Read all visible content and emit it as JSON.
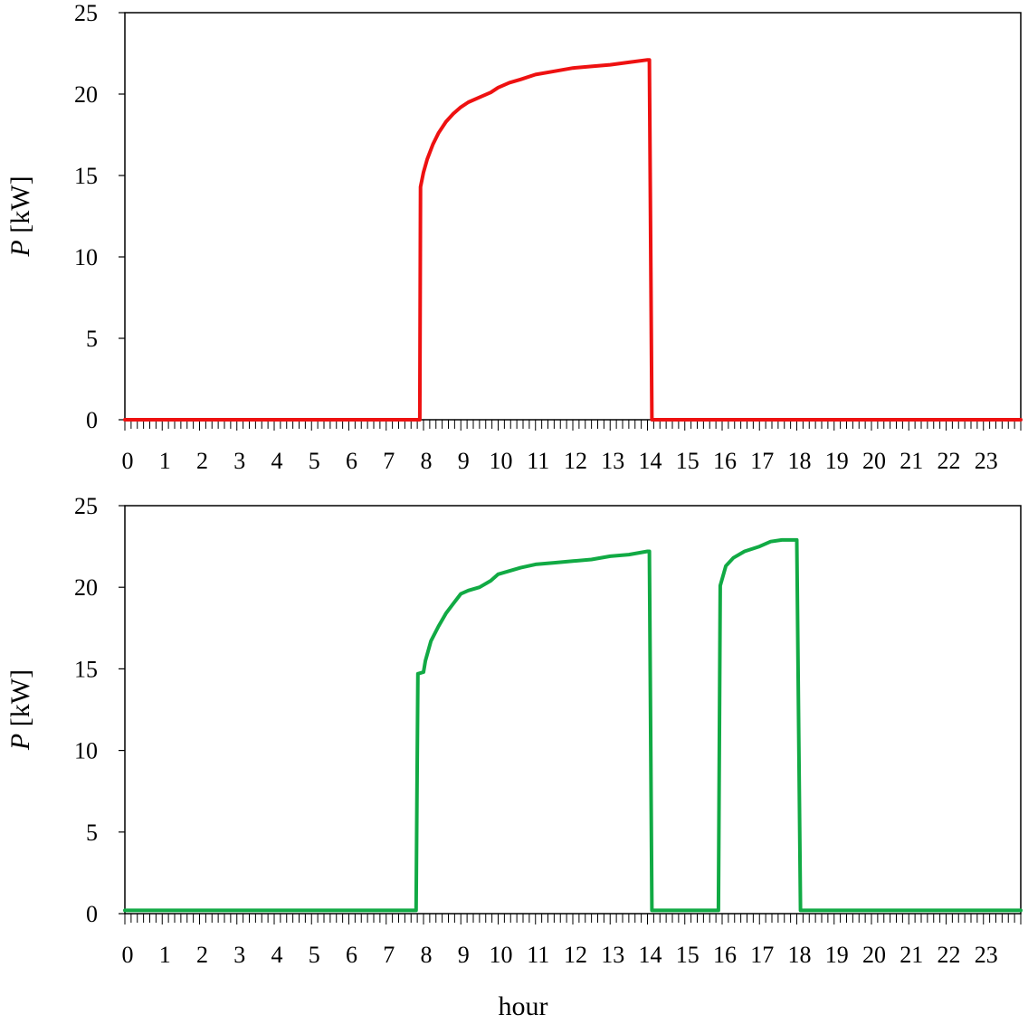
{
  "chart_data": [
    {
      "type": "line",
      "xlabel": "",
      "ylabel_italic": "P",
      "ylabel_rest": " [kW]",
      "ylim": [
        0,
        25
      ],
      "yticks": [
        "0",
        "5",
        "10",
        "15",
        "20",
        "25"
      ],
      "xlim": [
        0,
        24
      ],
      "xticks": [
        "0",
        "1",
        "2",
        "3",
        "4",
        "5",
        "6",
        "7",
        "8",
        "9",
        "10",
        "11",
        "12",
        "13",
        "14",
        "15",
        "16",
        "17",
        "18",
        "19",
        "20",
        "21",
        "22",
        "23"
      ],
      "color": "#ee1111",
      "series": [
        {
          "x": [
            0,
            7.9,
            7.92,
            8.0,
            8.1,
            8.25,
            8.4,
            8.6,
            8.8,
            9.0,
            9.2,
            9.5,
            9.8,
            10.0,
            10.3,
            10.6,
            11.0,
            11.5,
            12.0,
            12.5,
            13.0,
            13.5,
            14.0,
            14.05,
            14.12,
            24
          ],
          "y": [
            0,
            0,
            14.3,
            15.2,
            16.0,
            16.9,
            17.6,
            18.3,
            18.8,
            19.2,
            19.5,
            19.8,
            20.1,
            20.4,
            20.7,
            20.9,
            21.2,
            21.4,
            21.6,
            21.7,
            21.8,
            21.95,
            22.1,
            22.1,
            0,
            0
          ]
        }
      ]
    },
    {
      "type": "line",
      "xlabel": "hour",
      "ylabel_italic": "P",
      "ylabel_rest": " [kW]",
      "ylim": [
        0,
        25
      ],
      "yticks": [
        "0",
        "5",
        "10",
        "15",
        "20",
        "25"
      ],
      "xlim": [
        0,
        24
      ],
      "xticks": [
        "0",
        "1",
        "2",
        "3",
        "4",
        "5",
        "6",
        "7",
        "8",
        "9",
        "10",
        "11",
        "12",
        "13",
        "14",
        "15",
        "16",
        "17",
        "18",
        "19",
        "20",
        "21",
        "22",
        "23"
      ],
      "color": "#11aa44",
      "series": [
        {
          "x": [
            0,
            7.8,
            7.85,
            8.0,
            8.05,
            8.2,
            8.4,
            8.6,
            8.8,
            9.0,
            9.2,
            9.5,
            9.8,
            10.0,
            10.3,
            10.6,
            11.0,
            11.5,
            12.0,
            12.5,
            13.0,
            13.5,
            14.0,
            14.05,
            14.12,
            15.9,
            15.95,
            16.1,
            16.3,
            16.6,
            17.0,
            17.3,
            17.6,
            17.9,
            18.0,
            18.1,
            24
          ],
          "y": [
            0.2,
            0.2,
            14.7,
            14.8,
            15.5,
            16.7,
            17.6,
            18.4,
            19.0,
            19.6,
            19.8,
            20.0,
            20.4,
            20.8,
            21.0,
            21.2,
            21.4,
            21.5,
            21.6,
            21.7,
            21.9,
            22.0,
            22.2,
            22.2,
            0.2,
            0.2,
            20.1,
            21.3,
            21.8,
            22.2,
            22.5,
            22.8,
            22.9,
            22.9,
            22.9,
            0.2,
            0.2
          ]
        }
      ]
    }
  ]
}
